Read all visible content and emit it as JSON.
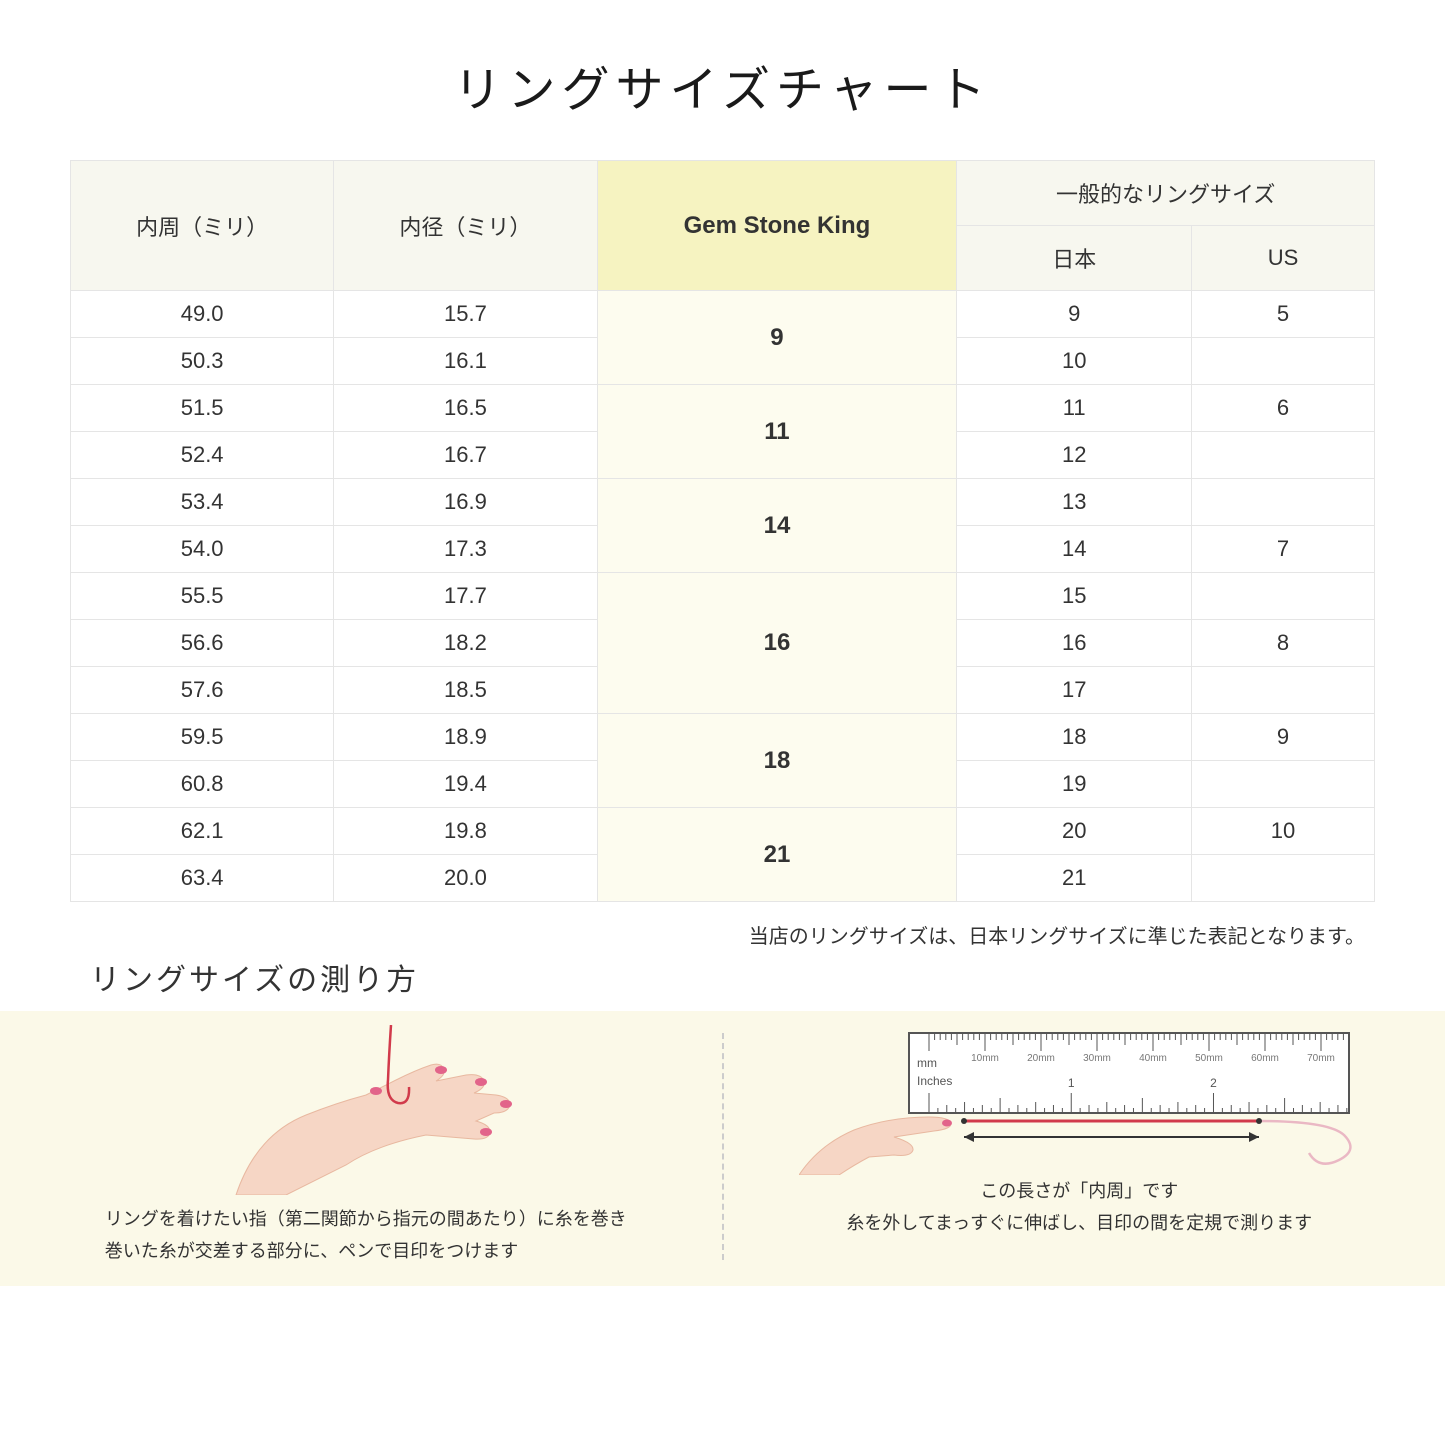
{
  "title": "リングサイズチャート",
  "headers": {
    "col1": "内周（ミリ）",
    "col2": "内径（ミリ）",
    "col3": "Gem Stone King",
    "col4_group": "一般的なリングサイズ",
    "col4a": "日本",
    "col4b": "US"
  },
  "groups": [
    {
      "gsk": "9",
      "rows": [
        {
          "c": "49.0",
          "d": "15.7",
          "jp": "9",
          "us": "5"
        },
        {
          "c": "50.3",
          "d": "16.1",
          "jp": "10",
          "us": ""
        }
      ]
    },
    {
      "gsk": "11",
      "rows": [
        {
          "c": "51.5",
          "d": "16.5",
          "jp": "11",
          "us": "6"
        },
        {
          "c": "52.4",
          "d": "16.7",
          "jp": "12",
          "us": ""
        }
      ]
    },
    {
      "gsk": "14",
      "rows": [
        {
          "c": "53.4",
          "d": "16.9",
          "jp": "13",
          "us": ""
        },
        {
          "c": "54.0",
          "d": "17.3",
          "jp": "14",
          "us": "7"
        }
      ]
    },
    {
      "gsk": "16",
      "rows": [
        {
          "c": "55.5",
          "d": "17.7",
          "jp": "15",
          "us": ""
        },
        {
          "c": "56.6",
          "d": "18.2",
          "jp": "16",
          "us": "8"
        },
        {
          "c": "57.6",
          "d": "18.5",
          "jp": "17",
          "us": ""
        }
      ]
    },
    {
      "gsk": "18",
      "rows": [
        {
          "c": "59.5",
          "d": "18.9",
          "jp": "18",
          "us": "9"
        },
        {
          "c": "60.8",
          "d": "19.4",
          "jp": "19",
          "us": ""
        }
      ]
    },
    {
      "gsk": "21",
      "rows": [
        {
          "c": "62.1",
          "d": "19.8",
          "jp": "20",
          "us": "10"
        },
        {
          "c": "63.4",
          "d": "20.0",
          "jp": "21",
          "us": ""
        }
      ]
    }
  ],
  "note": "当店のリングサイズは、日本リングサイズに準じた表記となります。",
  "howto_title": "リングサイズの測り方",
  "instr_left_l1": "リングを着けたい指（第二関節から指元の間あたり）に糸を巻き",
  "instr_left_l2": "巻いた糸が交差する部分に、ペンで目印をつけます",
  "ruler_label": "この長さが「内周」です",
  "instr_right": "糸を外してまっすぐに伸ばし、目印の間を定規で測ります",
  "ruler_mm_labels": [
    "10mm",
    "20mm",
    "30mm",
    "40mm",
    "50mm",
    "60mm",
    "70mm"
  ],
  "ruler_unit_mm": "mm",
  "ruler_unit_in": "Inches",
  "ruler_inch_labels": [
    "1",
    "2"
  ],
  "colors": {
    "header_bg": "#f7f7ef",
    "gsk_header_bg": "#f6f3c1",
    "gsk_cell_bg": "#fdfcef",
    "border": "#e5e5e5",
    "instr_bg": "#fbf9e8",
    "skin": "#f6d6c5",
    "nail": "#e2648a",
    "thread": "#d13a4b",
    "ruler_border": "#333"
  }
}
